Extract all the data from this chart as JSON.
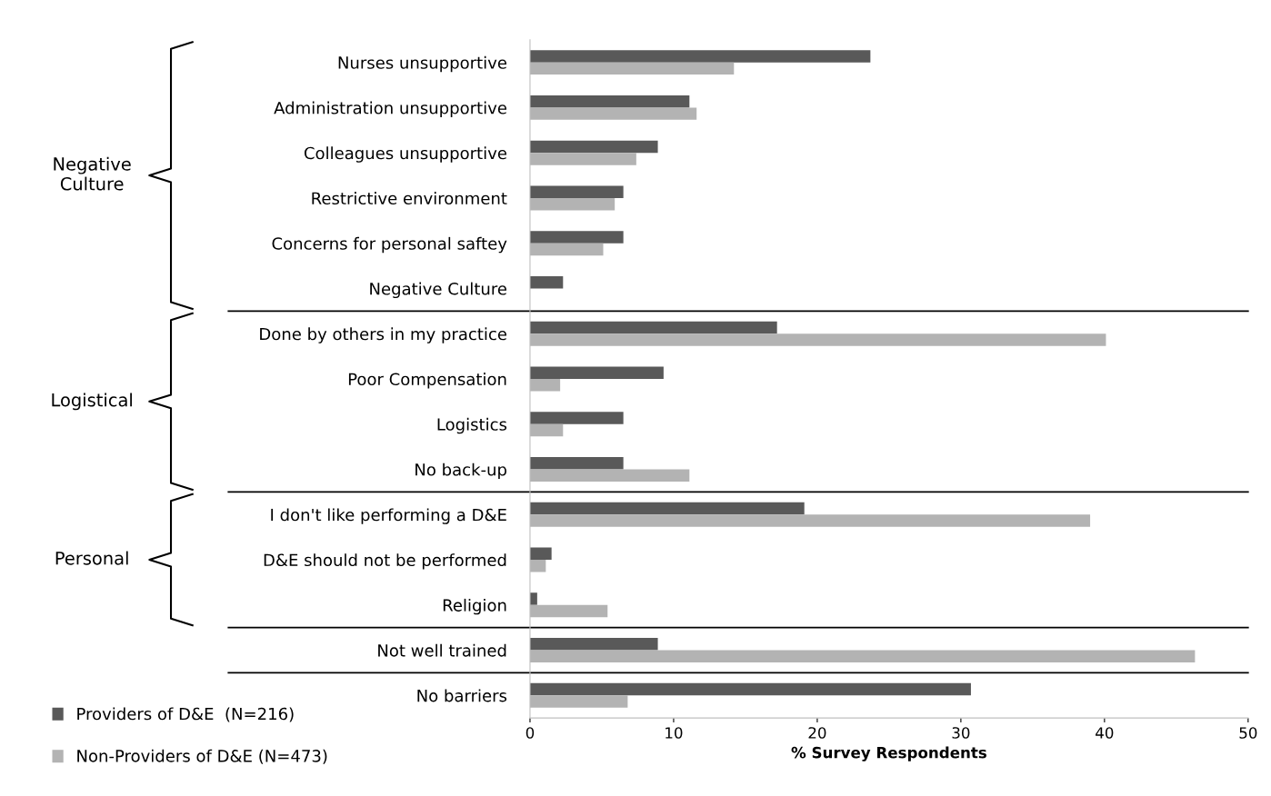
{
  "chart_data": {
    "type": "bar",
    "orientation": "horizontal",
    "xlabel": "% Survey Respondents",
    "categories": [
      "Nurses unsupportive",
      "Administration unsupportive",
      "Colleagues unsupportive",
      "Restrictive environment",
      "Concerns for personal saftey",
      "Negative Culture",
      "Done by others in my practice",
      "Poor Compensation",
      "Logistics",
      "No back-up",
      "I don't like performing a D&E",
      "D&E should not be performed",
      "Religion",
      "Not well trained",
      "No barriers"
    ],
    "series": [
      {
        "name": "Providers of D&E  (N=216)",
        "color": "#595959",
        "values": [
          23.7,
          11.1,
          8.9,
          6.5,
          6.5,
          2.3,
          17.2,
          9.3,
          6.5,
          6.5,
          19.1,
          1.5,
          0.5,
          8.9,
          30.7
        ]
      },
      {
        "name": "Non-Providers of D&E (N=473)",
        "color": "#b3b3b3",
        "values": [
          14.2,
          11.6,
          7.4,
          5.9,
          5.1,
          0,
          40.1,
          2.1,
          2.3,
          11.1,
          39.0,
          1.1,
          5.4,
          46.3,
          6.8
        ]
      }
    ],
    "xlim": [
      0,
      50
    ],
    "xticks": [
      0,
      10,
      20,
      30,
      40,
      50
    ],
    "annotations": [
      "Negative\nCulture",
      "Logistical",
      "Personal"
    ],
    "legend": "bottom left",
    "grid": false
  }
}
